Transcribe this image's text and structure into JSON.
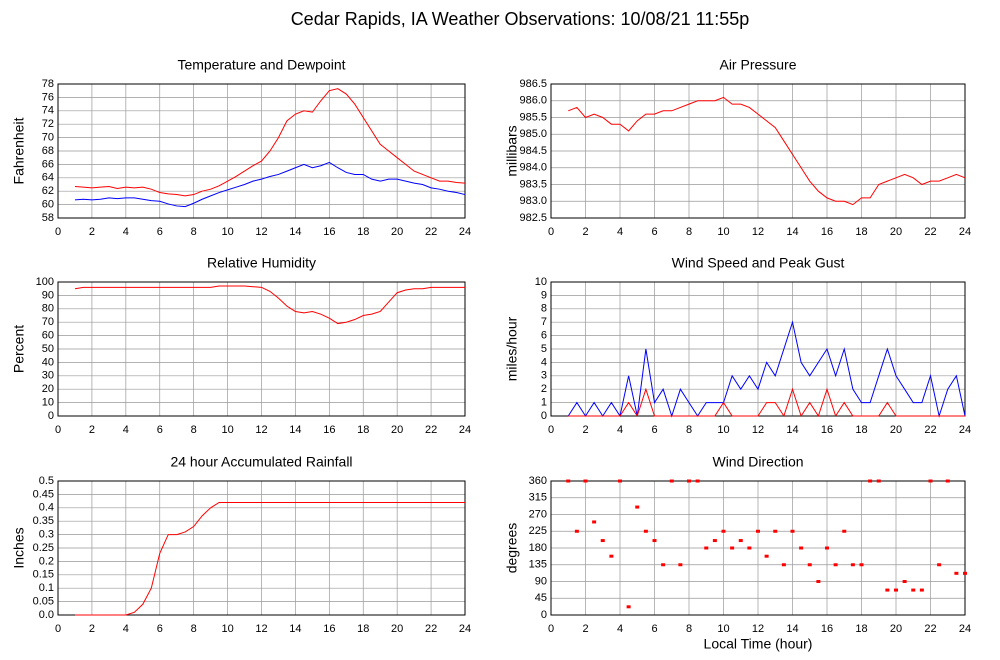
{
  "title": "Cedar Rapids, IA Weather Observations: 10/08/21 11:55p",
  "chart_data": [
    {
      "type": "line",
      "title": "Temperature and Dewpoint",
      "y_label": "Fahrenheit",
      "x": [
        1,
        1.5,
        2,
        2.5,
        3,
        3.5,
        4,
        4.5,
        5,
        5.5,
        6,
        6.5,
        7,
        7.5,
        8,
        8.5,
        9,
        9.5,
        10,
        10.5,
        11,
        11.5,
        12,
        12.5,
        13,
        13.5,
        14,
        14.5,
        15,
        15.5,
        16,
        16.5,
        17,
        17.5,
        18,
        18.5,
        19,
        19.5,
        20,
        20.5,
        21,
        21.5,
        22,
        22.5,
        23,
        23.5,
        24
      ],
      "series": [
        {
          "color": "#ff0000",
          "values": [
            62.7,
            62.6,
            62.5,
            62.6,
            62.7,
            62.4,
            62.6,
            62.5,
            62.6,
            62.3,
            61.8,
            61.6,
            61.5,
            61.3,
            61.5,
            62,
            62.3,
            62.8,
            63.5,
            64.2,
            65,
            65.8,
            66.5,
            68,
            70,
            72.5,
            73.5,
            74,
            73.8,
            75.5,
            77,
            77.3,
            76.5,
            75,
            73,
            71,
            69,
            68,
            67,
            66,
            65,
            64.5,
            64,
            63.5,
            63.5,
            63.3,
            63.2
          ]
        },
        {
          "color": "#0000ff",
          "values": [
            60.7,
            60.8,
            60.7,
            60.8,
            61,
            60.9,
            61,
            61,
            60.8,
            60.6,
            60.5,
            60.1,
            59.8,
            59.7,
            60.2,
            60.8,
            61.3,
            61.8,
            62.2,
            62.6,
            63,
            63.5,
            63.8,
            64.2,
            64.5,
            65,
            65.5,
            66,
            65.5,
            65.8,
            66.3,
            65.5,
            64.8,
            64.5,
            64.5,
            63.8,
            63.5,
            63.8,
            63.8,
            63.5,
            63.2,
            63,
            62.5,
            62.3,
            62,
            61.8,
            61.5
          ]
        }
      ],
      "xlim": [
        0,
        24
      ],
      "xticks": [
        0,
        2,
        4,
        6,
        8,
        10,
        12,
        14,
        16,
        18,
        20,
        22,
        24
      ],
      "ylim": [
        58,
        78
      ],
      "yticks": [
        58,
        60,
        62,
        64,
        66,
        68,
        70,
        72,
        74,
        76,
        78
      ],
      "grid": true
    },
    {
      "type": "line",
      "title": "Air Pressure",
      "y_label": "millibars",
      "x": [
        1,
        1.5,
        2,
        2.5,
        3,
        3.5,
        4,
        4.5,
        5,
        5.5,
        6,
        6.5,
        7,
        7.5,
        8,
        8.5,
        9,
        9.5,
        10,
        10.5,
        11,
        11.5,
        12,
        12.5,
        13,
        13.5,
        14,
        14.5,
        15,
        15.5,
        16,
        16.5,
        17,
        17.5,
        18,
        18.5,
        19,
        19.5,
        20,
        20.5,
        21,
        21.5,
        22,
        22.5,
        23,
        23.5,
        24
      ],
      "series": [
        {
          "color": "#ff0000",
          "values": [
            985.7,
            985.8,
            985.5,
            985.6,
            985.5,
            985.3,
            985.3,
            985.1,
            985.4,
            985.6,
            985.6,
            985.7,
            985.7,
            985.8,
            985.9,
            986,
            986,
            986,
            986.1,
            985.9,
            985.9,
            985.8,
            985.6,
            985.4,
            985.2,
            984.8,
            984.4,
            984,
            983.6,
            983.3,
            983.1,
            983,
            983,
            982.9,
            983.1,
            983.1,
            983.5,
            983.6,
            983.7,
            983.8,
            983.7,
            983.5,
            983.6,
            983.6,
            983.7,
            983.8,
            983.7
          ]
        }
      ],
      "xlim": [
        0,
        24
      ],
      "xticks": [
        0,
        2,
        4,
        6,
        8,
        10,
        12,
        14,
        16,
        18,
        20,
        22,
        24
      ],
      "ylim": [
        982.5,
        986.5
      ],
      "yticks": [
        982.5,
        {
          "value": 983,
          "label": "983.0"
        },
        983.5,
        {
          "value": 984,
          "label": "984.0"
        },
        984.5,
        {
          "value": 985,
          "label": "985.0"
        },
        985.5,
        {
          "value": 986,
          "label": "986.0"
        },
        986.5
      ],
      "grid": true
    },
    {
      "type": "line",
      "title": "Relative Humidity",
      "y_label": "Percent",
      "x": [
        1,
        1.5,
        2,
        2.5,
        3,
        3.5,
        4,
        4.5,
        5,
        5.5,
        6,
        6.5,
        7,
        7.5,
        8,
        8.5,
        9,
        9.5,
        10,
        10.5,
        11,
        11.5,
        12,
        12.5,
        13,
        13.5,
        14,
        14.5,
        15,
        15.5,
        16,
        16.5,
        17,
        17.5,
        18,
        18.5,
        19,
        19.5,
        20,
        20.5,
        21,
        21.5,
        22,
        22.5,
        23,
        23.5,
        24
      ],
      "series": [
        {
          "color": "#ff0000",
          "values": [
            95,
            96,
            96,
            96,
            96,
            96,
            96,
            96,
            96,
            96,
            96,
            96,
            96,
            96,
            96,
            96,
            96,
            97,
            97,
            97,
            97,
            96.5,
            96,
            93,
            88,
            82,
            78,
            77,
            78,
            76,
            73,
            69,
            70,
            72,
            75,
            76,
            78,
            85,
            92,
            94,
            95,
            95,
            96,
            96,
            96,
            96,
            96
          ]
        }
      ],
      "xlim": [
        0,
        24
      ],
      "xticks": [
        0,
        2,
        4,
        6,
        8,
        10,
        12,
        14,
        16,
        18,
        20,
        22,
        24
      ],
      "ylim": [
        0,
        100
      ],
      "yticks": [
        0,
        10,
        20,
        30,
        40,
        50,
        60,
        70,
        80,
        90,
        100
      ],
      "grid": true
    },
    {
      "type": "line",
      "title": "Wind Speed and Peak Gust",
      "y_label": "miles/hour",
      "x": [
        1,
        1.5,
        2,
        2.5,
        3,
        3.5,
        4,
        4.5,
        5,
        5.5,
        6,
        6.5,
        7,
        7.5,
        8,
        8.5,
        9,
        9.5,
        10,
        10.5,
        11,
        11.5,
        12,
        12.5,
        13,
        13.5,
        14,
        14.5,
        15,
        15.5,
        16,
        16.5,
        17,
        17.5,
        18,
        18.5,
        19,
        19.5,
        20,
        20.5,
        21,
        21.5,
        22,
        22.5,
        23,
        23.5,
        24
      ],
      "series": [
        {
          "color": "#0000ff",
          "values": [
            0,
            1,
            0,
            1,
            0,
            1,
            0,
            3,
            0,
            5,
            1,
            2,
            0,
            2,
            1,
            0,
            1,
            1,
            1,
            3,
            2,
            3,
            2,
            4,
            3,
            5,
            7,
            4,
            3,
            4,
            5,
            3,
            5,
            2,
            1,
            1,
            3,
            5,
            3,
            2,
            1,
            1,
            3,
            0,
            2,
            3,
            0
          ]
        },
        {
          "color": "#ff0000",
          "values": [
            0,
            0,
            0,
            0,
            0,
            0,
            0,
            1,
            0,
            2,
            0,
            0,
            0,
            0,
            0,
            0,
            0,
            0,
            1,
            0,
            0,
            0,
            0,
            1,
            1,
            0,
            2,
            0,
            1,
            0,
            2,
            0,
            1,
            0,
            0,
            0,
            0,
            1,
            0,
            0,
            0,
            0,
            0,
            0,
            0,
            0,
            0
          ]
        }
      ],
      "xlim": [
        0,
        24
      ],
      "xticks": [
        0,
        2,
        4,
        6,
        8,
        10,
        12,
        14,
        16,
        18,
        20,
        22,
        24
      ],
      "ylim": [
        0,
        10
      ],
      "yticks": [
        0,
        1,
        2,
        3,
        4,
        5,
        6,
        7,
        8,
        9,
        10
      ],
      "grid": true
    },
    {
      "type": "line",
      "title": "24 hour Accumulated Rainfall",
      "y_label": "Inches",
      "x": [
        1,
        1.5,
        2,
        2.5,
        3,
        3.5,
        4,
        4.5,
        5,
        5.5,
        6,
        6.5,
        7,
        7.5,
        8,
        8.5,
        9,
        9.5,
        10,
        10.5,
        11,
        11.5,
        12,
        12.5,
        13,
        13.5,
        14,
        14.5,
        15,
        15.5,
        16,
        16.5,
        17,
        17.5,
        18,
        18.5,
        19,
        19.5,
        20,
        20.5,
        21,
        21.5,
        22,
        22.5,
        23,
        23.5,
        24
      ],
      "series": [
        {
          "color": "#ff0000",
          "values": [
            0,
            0,
            0,
            0,
            0,
            0,
            0,
            0.01,
            0.04,
            0.1,
            0.23,
            0.3,
            0.3,
            0.31,
            0.33,
            0.37,
            0.4,
            0.42,
            0.42,
            0.42,
            0.42,
            0.42,
            0.42,
            0.42,
            0.42,
            0.42,
            0.42,
            0.42,
            0.42,
            0.42,
            0.42,
            0.42,
            0.42,
            0.42,
            0.42,
            0.42,
            0.42,
            0.42,
            0.42,
            0.42,
            0.42,
            0.42,
            0.42,
            0.42,
            0.42,
            0.42,
            0.42
          ]
        }
      ],
      "xlim": [
        0,
        24
      ],
      "xticks": [
        0,
        2,
        4,
        6,
        8,
        10,
        12,
        14,
        16,
        18,
        20,
        22,
        24
      ],
      "ylim": [
        0,
        0.5
      ],
      "yticks": [
        {
          "value": 0,
          "label": "0.0"
        },
        0.05,
        0.1,
        0.15,
        0.2,
        0.25,
        0.3,
        0.35,
        0.4,
        0.45,
        0.5
      ],
      "grid": true
    },
    {
      "type": "scatter",
      "title": "Wind Direction",
      "y_label": "degrees",
      "x_label": "Local Time (hour)",
      "x": [
        1,
        1.5,
        2,
        2.5,
        3,
        3.5,
        4,
        4.5,
        5,
        5.5,
        6,
        6.5,
        7,
        7.5,
        8,
        8.5,
        9,
        9.5,
        10,
        10.5,
        11,
        11.5,
        12,
        12.5,
        13,
        13.5,
        14,
        14.5,
        15,
        15.5,
        16,
        16.5,
        17,
        17.5,
        18,
        18.5,
        19,
        19.5,
        20,
        20.5,
        21,
        21.5,
        22,
        22.5,
        23,
        23.5,
        24
      ],
      "series": [
        {
          "color": "#ff0000",
          "values": [
            360,
            225,
            360,
            250,
            200,
            158,
            360,
            22,
            290,
            225,
            200,
            135,
            360,
            135,
            360,
            360,
            180,
            200,
            225,
            180,
            200,
            180,
            225,
            158,
            225,
            135,
            225,
            180,
            135,
            90,
            180,
            135,
            225,
            135,
            135,
            360,
            360,
            67,
            67,
            90,
            67,
            67,
            360,
            135,
            360,
            112,
            112
          ]
        }
      ],
      "xlim": [
        0,
        24
      ],
      "xticks": [
        0,
        2,
        4,
        6,
        8,
        10,
        12,
        14,
        16,
        18,
        20,
        22,
        24
      ],
      "ylim": [
        0,
        360
      ],
      "yticks": [
        0,
        45,
        90,
        135,
        180,
        225,
        270,
        315,
        360
      ],
      "grid": true
    }
  ]
}
